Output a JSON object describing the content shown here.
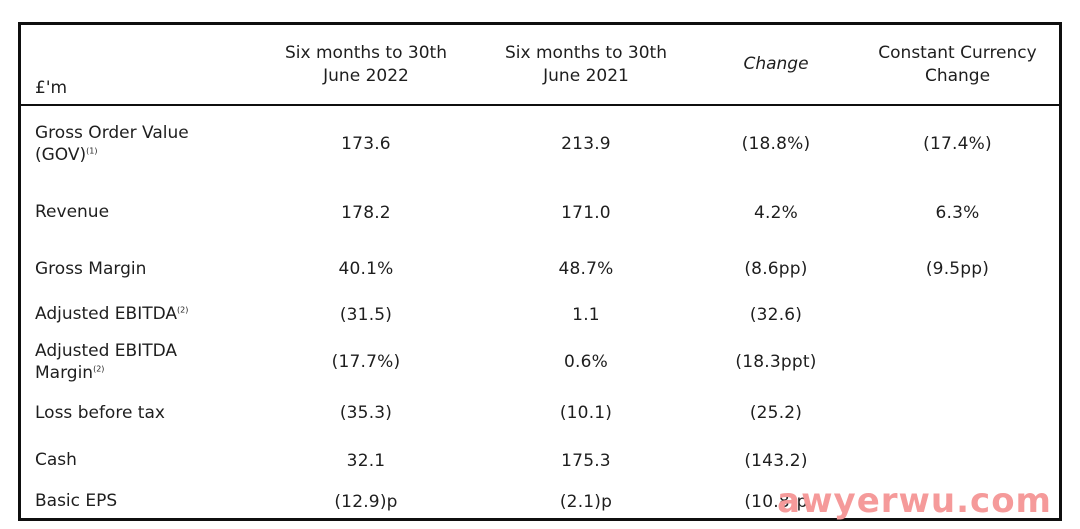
{
  "table": {
    "unit_label": "£'m",
    "columns": [
      "Six months to 30th June 2022",
      "Six months to 30th June 2021",
      "Change",
      "Constant Currency Change"
    ],
    "rows": [
      {
        "label": "Gross Order Value (GOV)",
        "footnote": "(1)",
        "values": [
          "173.6",
          "213.9",
          "(18.8%)",
          "(17.4%)"
        ]
      },
      {
        "label": "Revenue",
        "footnote": "",
        "values": [
          "178.2",
          "171.0",
          "4.2%",
          "6.3%"
        ]
      },
      {
        "label": "Gross Margin",
        "footnote": "",
        "values": [
          "40.1%",
          "48.7%",
          "(8.6pp)",
          "(9.5pp)"
        ]
      },
      {
        "label": "Adjusted EBITDA",
        "footnote": "(2)",
        "values": [
          "(31.5)",
          "1.1",
          "(32.6)",
          ""
        ]
      },
      {
        "label": "Adjusted EBITDA Margin",
        "footnote": "(2)",
        "values": [
          "(17.7%)",
          "0.6%",
          "(18.3ppt)",
          ""
        ]
      },
      {
        "label": "Loss before tax",
        "footnote": "",
        "values": [
          "(35.3)",
          "(10.1)",
          "(25.2)",
          ""
        ]
      },
      {
        "label": "Cash",
        "footnote": "",
        "values": [
          "32.1",
          "175.3",
          "(143.2)",
          ""
        ]
      },
      {
        "label": "Basic EPS",
        "footnote": "",
        "values": [
          "(12.9)p",
          "(2.1)p",
          "(10.8)p",
          ""
        ]
      }
    ]
  },
  "watermark": {
    "text": "awyerwu.com",
    "color": "#f59a9a"
  }
}
